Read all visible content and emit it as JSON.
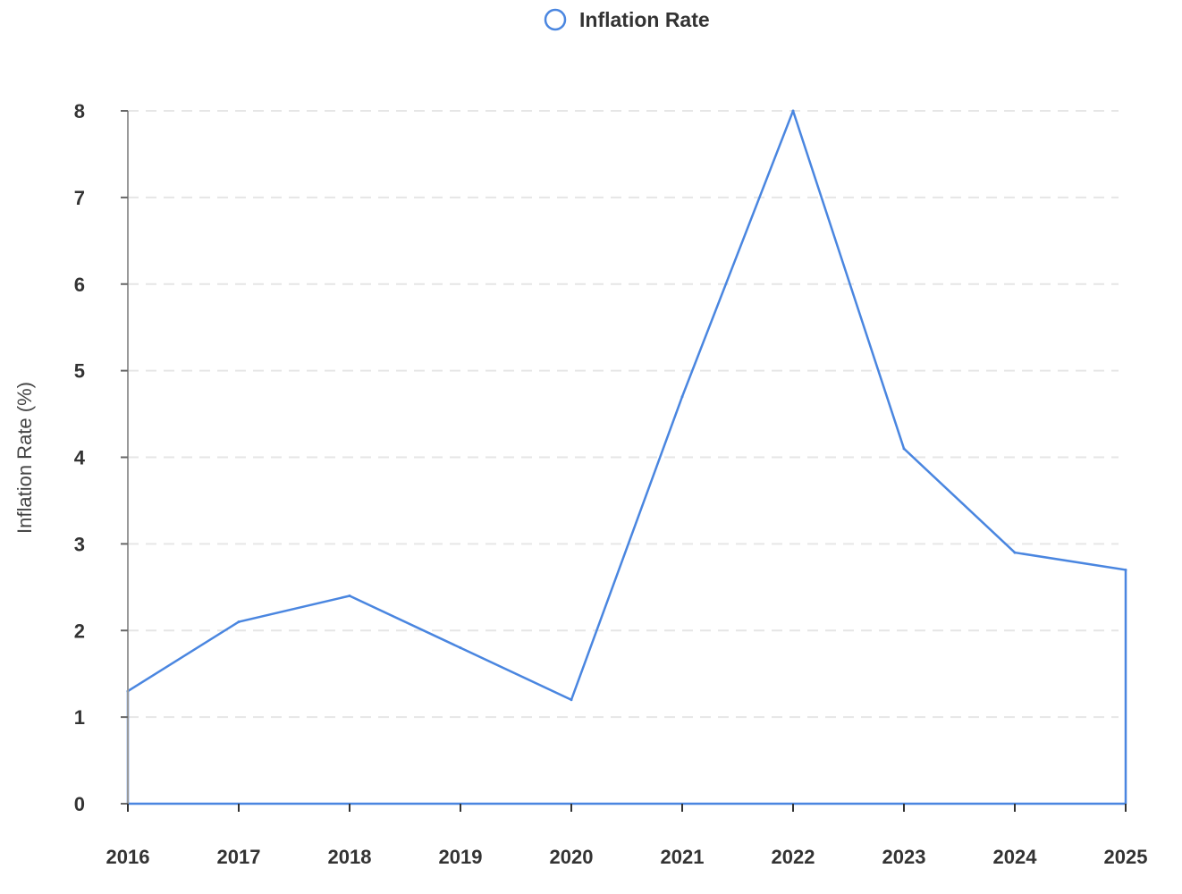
{
  "chart_data": {
    "type": "area",
    "title": "",
    "xlabel": "",
    "ylabel": "Inflation Rate (%)",
    "categories": [
      "2016",
      "2017",
      "2018",
      "2019",
      "2020",
      "2021",
      "2022",
      "2023",
      "2024",
      "2025"
    ],
    "series": [
      {
        "name": "Inflation Rate",
        "values": [
          1.3,
          2.1,
          2.4,
          1.8,
          1.2,
          4.7,
          8.0,
          4.1,
          2.9,
          2.7
        ]
      }
    ],
    "ylim": [
      0,
      8
    ],
    "yticks": [
      "0",
      "1",
      "2",
      "3",
      "4",
      "5",
      "6",
      "7",
      "8"
    ],
    "grid": true,
    "legend_position": "top-center",
    "colors": {
      "series": "#4a86e0",
      "axis": "#999999",
      "grid": "#e6e6e6",
      "text": "#333333"
    }
  }
}
